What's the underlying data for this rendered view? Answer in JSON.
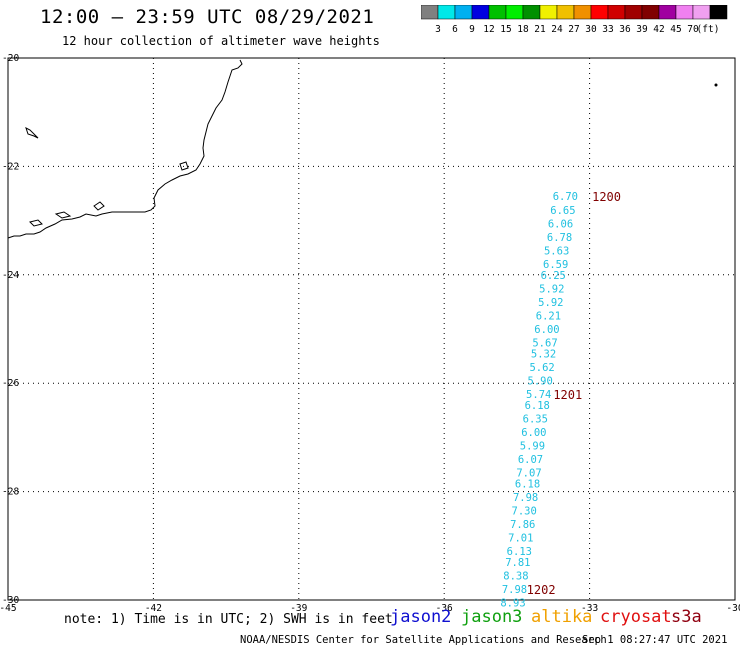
{
  "header": {
    "title": "12:00 — 23:59 UTC 08/29/2021",
    "subtitle": "12 hour collection of altimeter wave heights"
  },
  "legend": {
    "colors": [
      "#808080",
      "#00e8e8",
      "#00b0f0",
      "#0000e0",
      "#00c000",
      "#00ee00",
      "#009000",
      "#f0f000",
      "#f0c000",
      "#f09000",
      "#ff0000",
      "#d00000",
      "#a00000",
      "#800000",
      "#a000a0",
      "#f080f0",
      "#f0a0f0",
      "#000000"
    ],
    "labels": [
      "3",
      "6",
      "9",
      "12",
      "15",
      "18",
      "21",
      "24",
      "27",
      "30",
      "33",
      "36",
      "39",
      "42",
      "45",
      "70",
      "(ft)"
    ]
  },
  "map": {
    "lon_ticks": [
      "-45",
      "-42",
      "-39",
      "-36",
      "-33",
      "-30"
    ],
    "lat_ticks": [
      "-20",
      "-22",
      "-24",
      "-26",
      "-28",
      "-30"
    ],
    "track_color": "#20c0e0",
    "time_label_color": "#800000",
    "track_points": [
      {
        "lon": -33.5,
        "lat": -22.55,
        "swh": "6.70"
      },
      {
        "lon": -33.55,
        "lat": -22.8,
        "swh": "6.65"
      },
      {
        "lon": -33.6,
        "lat": -23.05,
        "swh": "6.06"
      },
      {
        "lon": -33.62,
        "lat": -23.3,
        "swh": "6.78"
      },
      {
        "lon": -33.68,
        "lat": -23.55,
        "swh": "5.63"
      },
      {
        "lon": -33.7,
        "lat": -23.8,
        "swh": "6.59"
      },
      {
        "lon": -33.75,
        "lat": -24.0,
        "swh": "6.25"
      },
      {
        "lon": -33.78,
        "lat": -24.25,
        "swh": "5.92"
      },
      {
        "lon": -33.8,
        "lat": -24.5,
        "swh": "5.92"
      },
      {
        "lon": -33.85,
        "lat": -24.75,
        "swh": "6.21"
      },
      {
        "lon": -33.88,
        "lat": -25.0,
        "swh": "6.00"
      },
      {
        "lon": -33.92,
        "lat": -25.25,
        "swh": "5.67"
      },
      {
        "lon": -33.95,
        "lat": -25.45,
        "swh": "5.32"
      },
      {
        "lon": -33.98,
        "lat": -25.7,
        "swh": "5.62"
      },
      {
        "lon": -34.02,
        "lat": -25.95,
        "swh": "5.90"
      },
      {
        "lon": -34.05,
        "lat": -26.2,
        "swh": "5.74"
      },
      {
        "lon": -34.08,
        "lat": -26.4,
        "swh": "6.18"
      },
      {
        "lon": -34.12,
        "lat": -26.65,
        "swh": "6.35"
      },
      {
        "lon": -34.15,
        "lat": -26.9,
        "swh": "6.00"
      },
      {
        "lon": -34.18,
        "lat": -27.15,
        "swh": "5.99"
      },
      {
        "lon": -34.22,
        "lat": -27.4,
        "swh": "6.07"
      },
      {
        "lon": -34.25,
        "lat": -27.65,
        "swh": "7.07"
      },
      {
        "lon": -34.28,
        "lat": -27.85,
        "swh": "6.18"
      },
      {
        "lon": -34.32,
        "lat": -28.1,
        "swh": "7.98"
      },
      {
        "lon": -34.35,
        "lat": -28.35,
        "swh": "7.30"
      },
      {
        "lon": -34.38,
        "lat": -28.6,
        "swh": "7.86"
      },
      {
        "lon": -34.42,
        "lat": -28.85,
        "swh": "7.01"
      },
      {
        "lon": -34.45,
        "lat": -29.1,
        "swh": "6.13"
      },
      {
        "lon": -34.48,
        "lat": -29.3,
        "swh": "7.81"
      },
      {
        "lon": -34.52,
        "lat": -29.55,
        "swh": "8.38"
      },
      {
        "lon": -34.55,
        "lat": -29.8,
        "swh": "7.98"
      },
      {
        "lon": -34.58,
        "lat": -30.05,
        "swh": "8.93"
      }
    ],
    "time_labels": [
      {
        "lon": -32.65,
        "lat": -22.55,
        "text": "1200"
      },
      {
        "lon": -33.45,
        "lat": -26.2,
        "text": "1201"
      },
      {
        "lon": -34.0,
        "lat": -29.8,
        "text": "1202"
      }
    ]
  },
  "footer": {
    "note": "note: 1) Time is in UTC; 2) SWH is in feet",
    "satellites": [
      "jason2",
      "jason3",
      "altika",
      "cryosat",
      "s3a"
    ],
    "credit": "NOAA/NESDIS Center for Satellite Applications and Research",
    "timestamp": "Sep  1 08:27:47 UTC 2021"
  }
}
